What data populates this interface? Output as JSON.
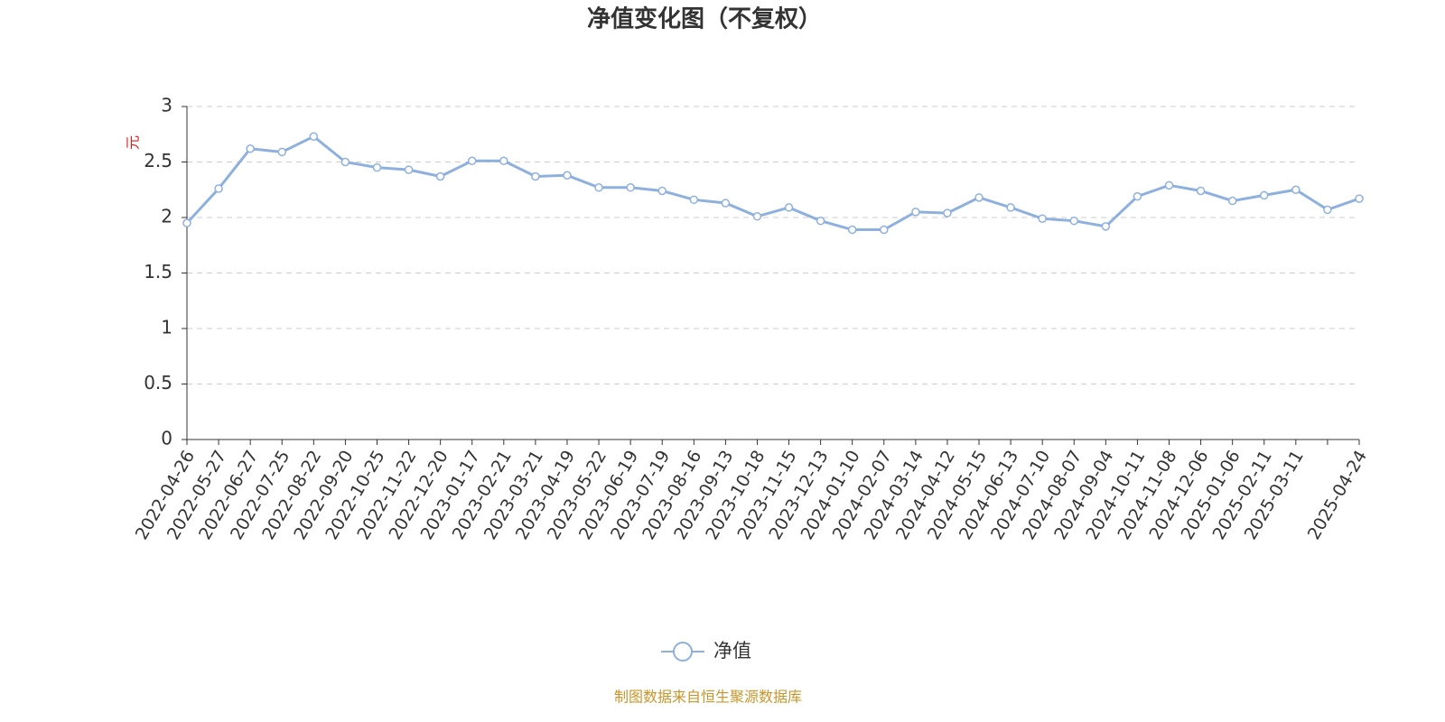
{
  "chart_data": {
    "type": "line",
    "title": "净值变化图（不复权）",
    "y_label": "元",
    "categories": [
      "2022-04-26",
      "2022-05-27",
      "2022-06-27",
      "2022-07-25",
      "2022-08-22",
      "2022-09-20",
      "2022-10-25",
      "2022-11-22",
      "2022-12-20",
      "2023-01-17",
      "2023-02-21",
      "2023-03-21",
      "2023-04-19",
      "2023-05-22",
      "2023-06-19",
      "2023-07-19",
      "2023-08-16",
      "2023-09-13",
      "2023-10-18",
      "2023-11-15",
      "2023-12-13",
      "2024-01-10",
      "2024-02-07",
      "2024-03-14",
      "2024-04-12",
      "2024-05-15",
      "2024-06-13",
      "2024-07-10",
      "2024-08-07",
      "2024-09-04",
      "2024-10-11",
      "2024-11-08",
      "2024-12-06",
      "2025-01-06",
      "2025-02-11",
      "2025-03-11",
      null,
      "2025-04-24"
    ],
    "series": [
      {
        "name": "净值",
        "color": "#8eb0de",
        "values": [
          1.95,
          2.26,
          2.62,
          2.59,
          2.73,
          2.5,
          2.45,
          2.43,
          2.37,
          2.51,
          2.51,
          2.37,
          2.38,
          2.27,
          2.27,
          2.24,
          2.16,
          2.13,
          2.01,
          2.09,
          1.97,
          1.89,
          1.89,
          2.05,
          2.04,
          2.18,
          2.09,
          1.99,
          1.97,
          1.92,
          2.19,
          2.29,
          2.24,
          2.15,
          2.2,
          2.25,
          2.07,
          2.17
        ]
      }
    ],
    "ylim": [
      0,
      3
    ],
    "yticks": [
      0,
      0.5,
      1,
      1.5,
      2,
      2.5,
      3
    ],
    "grid": true,
    "legend": "bottom",
    "source": "制图数据来自恒生聚源数据库"
  }
}
